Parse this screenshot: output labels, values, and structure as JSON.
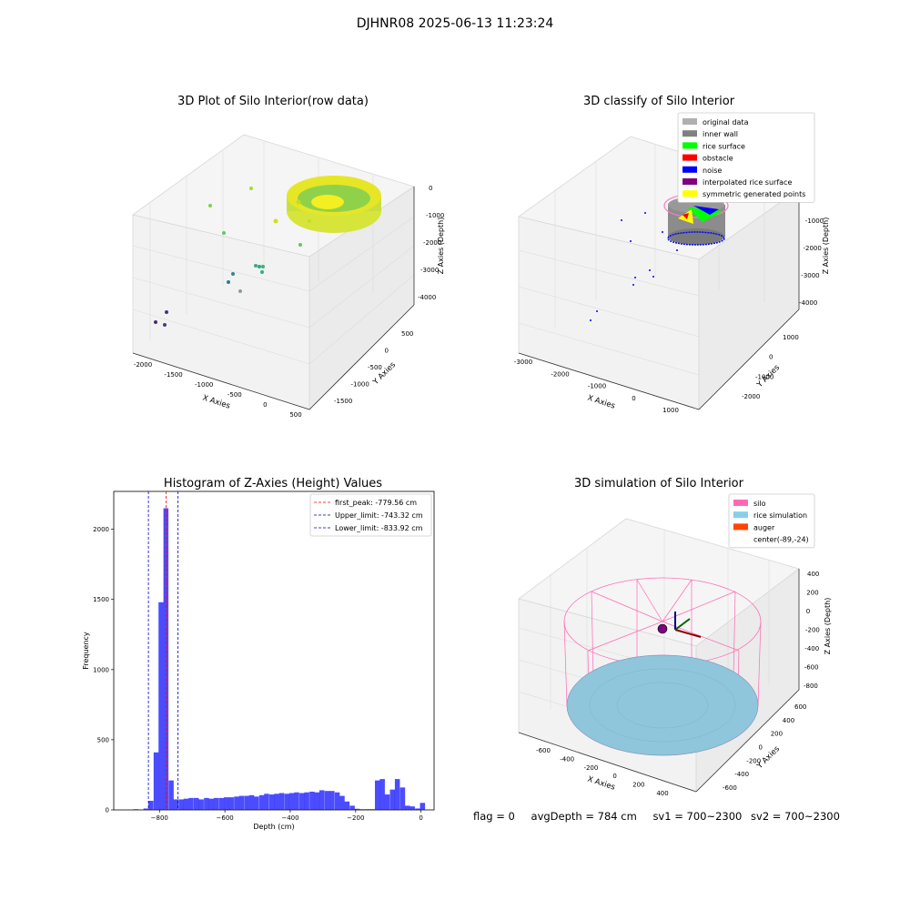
{
  "suptitle": "DJHNR08 2025-06-13 11:23:24",
  "panels": {
    "raw": {
      "title": "3D Plot of Silo Interior(row data)",
      "xlabel": "X Axies",
      "ylabel": "Y Axies",
      "zlabel": "Z Axies (Depth)",
      "xticks": [
        "-2000",
        "-1500",
        "-1000",
        "-500",
        "0",
        "500"
      ],
      "yticks": [
        "500",
        "0",
        "-500",
        "-1000",
        "-1500"
      ],
      "zticks": [
        "0",
        "-1000",
        "-2000",
        "-3000",
        "-4000"
      ]
    },
    "classify": {
      "title": "3D classify of Silo Interior",
      "xlabel": "X Axies",
      "ylabel": "Y Axies",
      "zlabel": "Z Axies (Depth)",
      "xticks": [
        "-3000",
        "-2000",
        "-1000",
        "0",
        "1000"
      ],
      "yticks": [
        "1000",
        "0",
        "-1000",
        "-2000"
      ],
      "zticks": [
        "0",
        "-1000",
        "-2000",
        "-3000",
        "-4000"
      ],
      "legend": [
        {
          "label": "original data",
          "color": "#b0b0b0"
        },
        {
          "label": "inner wall",
          "color": "#808080"
        },
        {
          "label": "rice surface",
          "color": "#00ff00"
        },
        {
          "label": "obstacle",
          "color": "#ff0000"
        },
        {
          "label": "noise",
          "color": "#0000ff"
        },
        {
          "label": "interpolated rice surface",
          "color": "#800080"
        },
        {
          "label": "symmetric generated points",
          "color": "#ffff00"
        }
      ]
    },
    "simulation": {
      "title": "3D simulation of Silo Interior",
      "xlabel": "X Axies",
      "ylabel": "Y Axies",
      "zlabel": "Z Axies (Depth)",
      "xticks": [
        "-600",
        "-400",
        "-200",
        "0",
        "200",
        "400"
      ],
      "yticks": [
        "600",
        "400",
        "200",
        "0",
        "-200",
        "-400",
        "-600"
      ],
      "zticks": [
        "400",
        "200",
        "0",
        "-200",
        "-400",
        "-600",
        "-800"
      ],
      "legend": [
        {
          "label": "silo",
          "color": "#ff69b4"
        },
        {
          "label": "rice simulation",
          "color": "#87ceeb"
        },
        {
          "label": "auger",
          "color": "#ff4500"
        },
        {
          "label": "center(-89,-24)",
          "color": ""
        }
      ]
    }
  },
  "chart_data": {
    "type": "bar",
    "title": "Histogram of Z-Axies (Height) Values",
    "xlabel": "Depth (cm)",
    "ylabel": "Frequency",
    "xlim": [
      -940,
      40
    ],
    "ylim": [
      0,
      2270
    ],
    "xticks": [
      -800,
      -600,
      -400,
      -200,
      0
    ],
    "yticks": [
      0,
      500,
      1000,
      1500,
      2000
    ],
    "bar_color": "#0000ff",
    "bin_width": 15.4,
    "bins": [
      {
        "x": -880,
        "y": 5
      },
      {
        "x": -865,
        "y": 2
      },
      {
        "x": -849,
        "y": 10
      },
      {
        "x": -834,
        "y": 65
      },
      {
        "x": -818,
        "y": 410
      },
      {
        "x": -803,
        "y": 1480
      },
      {
        "x": -788,
        "y": 2150
      },
      {
        "x": -772,
        "y": 210
      },
      {
        "x": -757,
        "y": 75
      },
      {
        "x": -741,
        "y": 75
      },
      {
        "x": -726,
        "y": 80
      },
      {
        "x": -711,
        "y": 85
      },
      {
        "x": -695,
        "y": 85
      },
      {
        "x": -680,
        "y": 75
      },
      {
        "x": -664,
        "y": 85
      },
      {
        "x": -649,
        "y": 80
      },
      {
        "x": -634,
        "y": 85
      },
      {
        "x": -618,
        "y": 85
      },
      {
        "x": -603,
        "y": 90
      },
      {
        "x": -588,
        "y": 90
      },
      {
        "x": -572,
        "y": 95
      },
      {
        "x": -557,
        "y": 100
      },
      {
        "x": -541,
        "y": 100
      },
      {
        "x": -526,
        "y": 105
      },
      {
        "x": -511,
        "y": 95
      },
      {
        "x": -495,
        "y": 105
      },
      {
        "x": -480,
        "y": 115
      },
      {
        "x": -464,
        "y": 110
      },
      {
        "x": -449,
        "y": 115
      },
      {
        "x": -434,
        "y": 120
      },
      {
        "x": -418,
        "y": 115
      },
      {
        "x": -403,
        "y": 120
      },
      {
        "x": -388,
        "y": 125
      },
      {
        "x": -372,
        "y": 120
      },
      {
        "x": -357,
        "y": 125
      },
      {
        "x": -341,
        "y": 130
      },
      {
        "x": -326,
        "y": 125
      },
      {
        "x": -311,
        "y": 140
      },
      {
        "x": -295,
        "y": 135
      },
      {
        "x": -280,
        "y": 135
      },
      {
        "x": -264,
        "y": 125
      },
      {
        "x": -249,
        "y": 100
      },
      {
        "x": -234,
        "y": 60
      },
      {
        "x": -218,
        "y": 30
      },
      {
        "x": -203,
        "y": 8
      },
      {
        "x": -188,
        "y": 5
      },
      {
        "x": -172,
        "y": 5
      },
      {
        "x": -157,
        "y": 5
      },
      {
        "x": -141,
        "y": 210
      },
      {
        "x": -126,
        "y": 220
      },
      {
        "x": -111,
        "y": 110
      },
      {
        "x": -95,
        "y": 145
      },
      {
        "x": -80,
        "y": 220
      },
      {
        "x": -64,
        "y": 160
      },
      {
        "x": -49,
        "y": 30
      },
      {
        "x": -34,
        "y": 25
      },
      {
        "x": -18,
        "y": 10
      },
      {
        "x": -3,
        "y": 50
      }
    ],
    "vlines": [
      {
        "label": "first_peak: -779.56 cm",
        "x": -779.56,
        "color": "#ff0000"
      },
      {
        "label": "Upper_limit: -743.32 cm",
        "x": -743.32,
        "color": "#0000cc"
      },
      {
        "label": "Lower_limit: -833.92 cm",
        "x": -833.92,
        "color": "#0000cc"
      }
    ]
  },
  "footer": {
    "flag": "flag = 0",
    "avg_depth": "avgDepth = 784 cm",
    "sv1": "sv1 = 700~2300",
    "sv2": "sv2 = 700~2300"
  }
}
